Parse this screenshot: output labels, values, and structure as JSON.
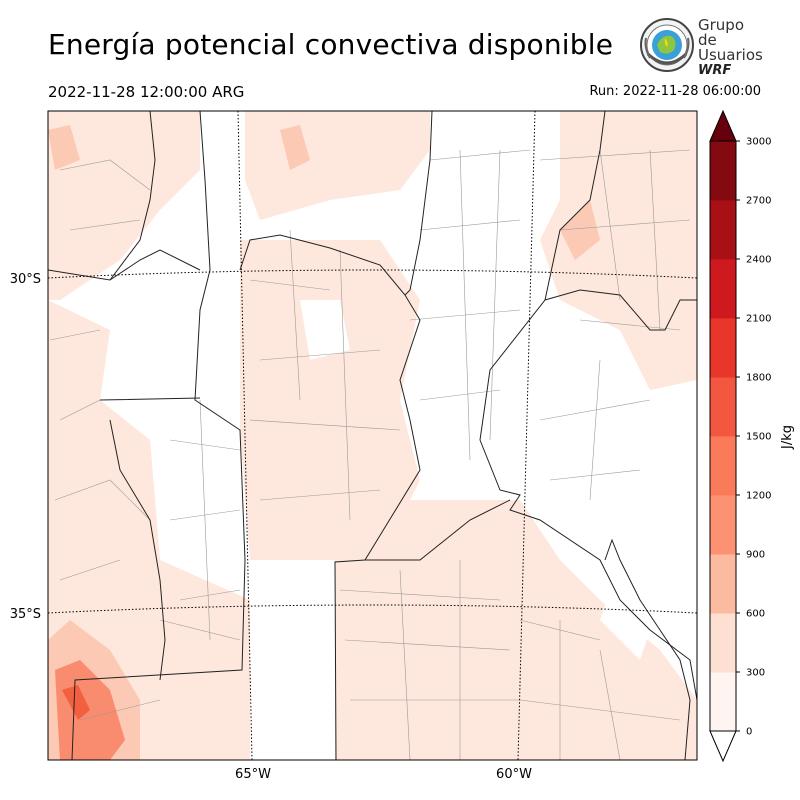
{
  "header": {
    "title": "Energía potencial convectiva disponible",
    "valid_time": "2022-11-28 12:00:00 ARG",
    "run_time": "Run: 2022-11-28 06:00:00"
  },
  "logo": {
    "line1": "Grupo de",
    "line2": "Usuarios",
    "line3": "WRF"
  },
  "map": {
    "lat_labels": [
      "30°S",
      "35°S"
    ],
    "lon_labels": [
      "65°W",
      "60°W"
    ],
    "variable": "CAPE"
  },
  "colorbar": {
    "label": "J/kg",
    "ticks": [
      "0",
      "300",
      "600",
      "900",
      "1200",
      "1500",
      "1800",
      "2100",
      "2400",
      "2700",
      "3000"
    ],
    "colors": [
      "#fff5f0",
      "#fee0d2",
      "#fcbba1",
      "#fc9272",
      "#fb7a5a",
      "#f4573f",
      "#e8362a",
      "#ce1a1e",
      "#a91016",
      "#830a11"
    ],
    "extend_color": "#67000d"
  },
  "colors": {
    "cape_low": "#fee7dc",
    "cape_mid": "#fcc9b4",
    "cape_high": "#f98b6e",
    "cape_peak": "#f3603f"
  }
}
